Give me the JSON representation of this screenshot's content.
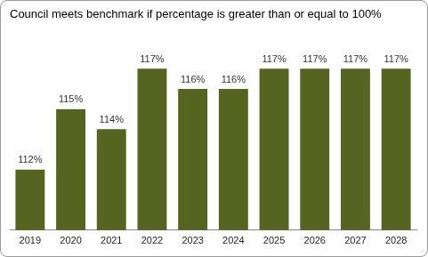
{
  "chart_data": {
    "type": "bar",
    "title": "Council meets benchmark if percentage is greater than or equal to 100%",
    "categories": [
      "2019",
      "2020",
      "2021",
      "2022",
      "2023",
      "2024",
      "2025",
      "2026",
      "2027",
      "2028"
    ],
    "values": [
      112,
      115,
      114,
      117,
      116,
      116,
      117,
      117,
      117,
      117
    ],
    "value_labels": [
      "112%",
      "115%",
      "114%",
      "117%",
      "116%",
      "116%",
      "117%",
      "117%",
      "117%",
      "117%"
    ],
    "color": "#55641f",
    "ylim": [
      109,
      118
    ],
    "yticks": [
      109,
      110,
      111,
      112,
      113,
      114,
      115,
      116,
      117,
      118
    ],
    "grid": false,
    "data_labels": true,
    "tick_labels": "x"
  }
}
